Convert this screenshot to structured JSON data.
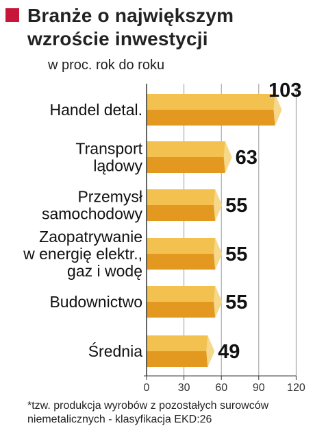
{
  "header": {
    "title": "Branże o największym wzroście inwestycji",
    "subtitle": "w proc. rok do roku",
    "accent_color": "#c8163a"
  },
  "footnote": "*tzw. produkcja wyrobów z pozostałych surowców niemetalicznych - klasyfikacja EKD:26",
  "colors": {
    "bar_top": "#f2c150",
    "bar_bottom": "#e3991f",
    "bar_tip": "#f6d88a",
    "grid": "#999999",
    "axis": "#333333"
  },
  "chart_data": {
    "type": "bar",
    "orientation": "horizontal",
    "title": "Branże o największym wzroście inwestycji",
    "subtitle": "w proc. rok do roku",
    "categories": [
      [
        "Handel detal."
      ],
      [
        "Transport",
        "lądowy"
      ],
      [
        "Przemysł",
        "samochodowy"
      ],
      [
        "Zaopatrywanie",
        "w energię elektr.,",
        "gaz i wodę"
      ],
      [
        "Budownictwo"
      ],
      [
        "Średnia"
      ]
    ],
    "values": [
      103,
      63,
      55,
      55,
      55,
      49
    ],
    "xlim": [
      0,
      120
    ],
    "xticks": [
      0,
      30,
      60,
      90,
      120
    ],
    "grid": true
  }
}
